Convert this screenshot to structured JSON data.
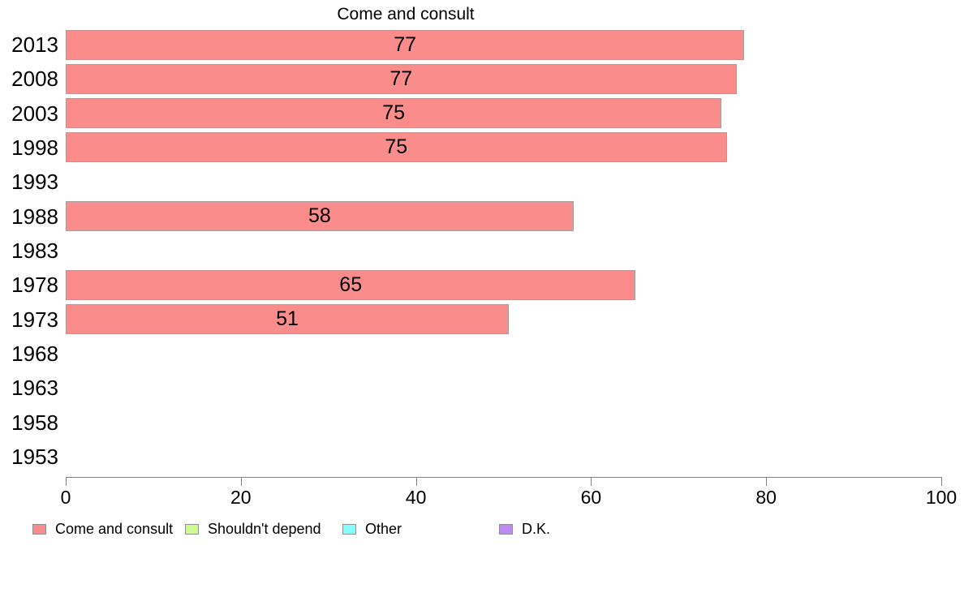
{
  "title": "Come and consult",
  "chart_data": {
    "type": "bar",
    "orientation": "horizontal",
    "title": "Come and consult",
    "categories": [
      "2013",
      "2008",
      "2003",
      "1998",
      "1993",
      "1988",
      "1983",
      "1978",
      "1973",
      "1968",
      "1963",
      "1958",
      "1953"
    ],
    "series": [
      {
        "name": "Come and consult",
        "values": [
          77,
          77,
          75,
          75,
          null,
          58,
          null,
          65,
          51,
          null,
          null,
          null,
          null
        ],
        "bar_lengths_est": [
          77.5,
          76.6,
          74.9,
          75.5,
          null,
          58.0,
          null,
          65.1,
          50.6,
          null,
          null,
          null,
          null
        ],
        "color": "#FB8C8C"
      }
    ],
    "value_labels_shown": true,
    "xlabel": "",
    "ylabel": "",
    "xlim": [
      0,
      100
    ],
    "x_ticks": [
      "0",
      "20",
      "40",
      "60",
      "80",
      "100"
    ],
    "grid": false,
    "legend_position": "bottom-left",
    "legend": [
      {
        "label": "Come and consult",
        "color": "#FB8C8C"
      },
      {
        "label": "Shouldn't depend",
        "color": "#CCFC8E"
      },
      {
        "label": "Other",
        "color": "#84FFFF"
      },
      {
        "label": "D.K.",
        "color": "#BE8CF0"
      }
    ]
  },
  "colors": {
    "bar_fill": "#FB8C8C",
    "bar_border": "#A0A0A0",
    "axis": "#808080",
    "text": "#000000"
  }
}
